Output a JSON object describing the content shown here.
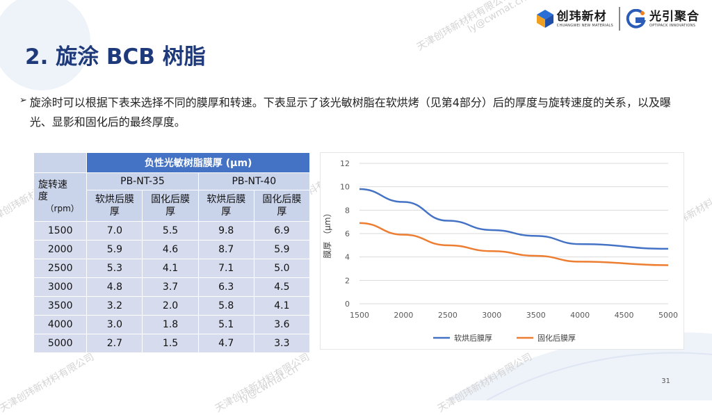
{
  "logos": {
    "left_name": "创玮新材",
    "left_sub": "CHUANGWEI NEW MATERIALS",
    "right_name": "光引聚合",
    "right_sub": "OPTIPACK INNOVATIONS"
  },
  "title": "2. 旋涂 BCB 树脂",
  "bullet": {
    "mark": "➢",
    "text": "旋涂时可以根据下表来选择不同的膜厚和转速。下表显示了该光敏树脂在软烘烤（见第4部分）后的厚度与旋转速度的关系，以及曝光、显影和固化后的最终厚度。"
  },
  "table": {
    "header_main": "负性光敏树脂膜厚 (μm)",
    "row_header_label": "旋转速度",
    "row_header_unit": "（rpm）",
    "products": [
      "PB-NT-35",
      "PB-NT-40"
    ],
    "subcols": [
      "软烘后膜厚",
      "固化后膜厚",
      "软烘后膜厚",
      "固化后膜厚"
    ],
    "rows": [
      [
        "1500",
        "7.0",
        "5.5",
        "9.8",
        "6.9"
      ],
      [
        "2000",
        "5.9",
        "4.6",
        "8.7",
        "5.9"
      ],
      [
        "2500",
        "5.3",
        "4.1",
        "7.1",
        "5.0"
      ],
      [
        "3000",
        "4.8",
        "3.7",
        "6.3",
        "4.5"
      ],
      [
        "3500",
        "3.2",
        "2.0",
        "5.8",
        "4.1"
      ],
      [
        "4000",
        "3.0",
        "1.8",
        "5.1",
        "3.6"
      ],
      [
        "5000",
        "2.7",
        "1.5",
        "4.7",
        "3.3"
      ]
    ]
  },
  "chart_data": {
    "type": "line",
    "x": [
      1500,
      2000,
      2500,
      3000,
      3500,
      4000,
      5000
    ],
    "x_ticks": [
      "1500",
      "2000",
      "2500",
      "3000",
      "3500",
      "4000",
      "4500",
      "5000"
    ],
    "y_ticks": [
      "0",
      "2",
      "4",
      "6",
      "8",
      "10",
      "12"
    ],
    "xlim": [
      1500,
      5000
    ],
    "ylim": [
      0,
      12
    ],
    "ylabel": "膜厚 （μm）",
    "xlabel": "",
    "grid": "horizontal",
    "legend_position": "bottom",
    "series": [
      {
        "name": "软烘后膜厚",
        "color": "#4472c4",
        "values": [
          9.8,
          8.7,
          7.1,
          6.3,
          5.8,
          5.1,
          4.7
        ]
      },
      {
        "name": "固化后膜厚",
        "color": "#ed7d31",
        "values": [
          6.9,
          5.9,
          5.0,
          4.5,
          4.1,
          3.6,
          3.3
        ]
      }
    ]
  },
  "page_number": "31",
  "watermarks": [
    "天津创玮新材料有限公司",
    "ly@cwmat.cn"
  ],
  "colors": {
    "title": "#1f3a7a",
    "table_header": "#4472c4",
    "table_sub": "#c9d3ea",
    "table_row": "#d6dcee"
  }
}
